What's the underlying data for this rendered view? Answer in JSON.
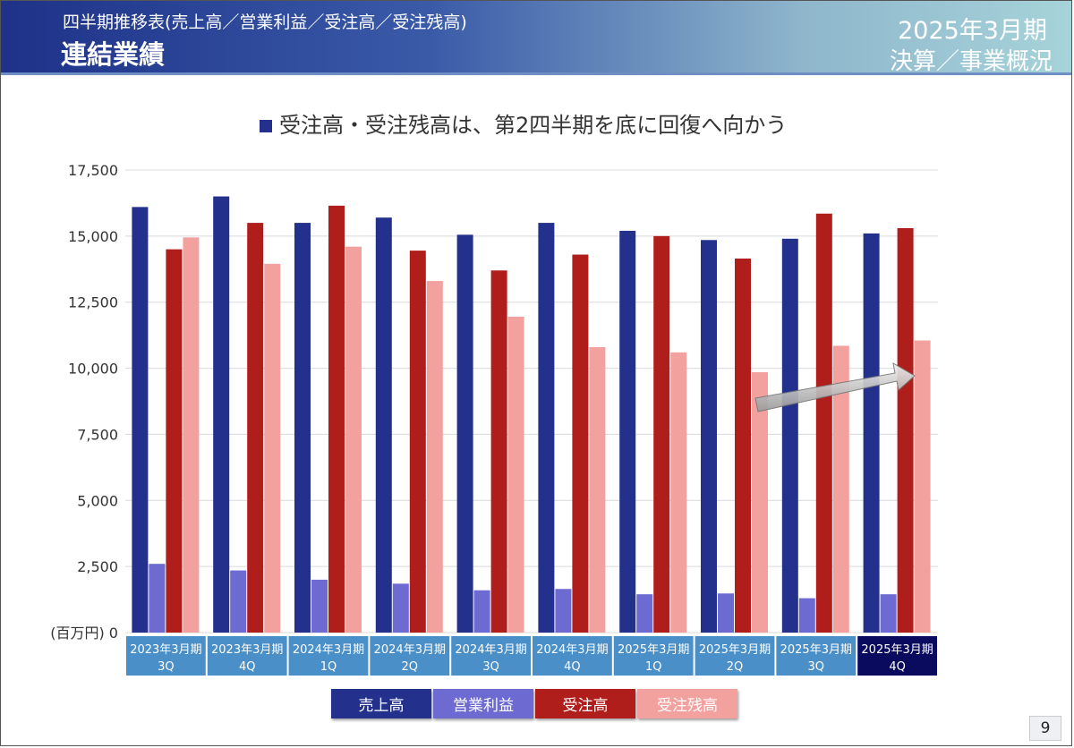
{
  "header": {
    "subtitle": "四半期推移表(売上高／営業利益／受注高／受注残高)",
    "title": "連結業績",
    "period": "2025年3月期",
    "section": "決算／事業概況"
  },
  "page_number": "9",
  "colors": {
    "sales": "#23318c",
    "operating_profit": "#6d6ad2",
    "orders": "#b01e1b",
    "backlog": "#f2a19f",
    "category_bg": "#4a8fc7",
    "category_highlight": "#0a0a5e"
  },
  "chart_data": {
    "type": "bar",
    "title": "受注高・受注残高は、第2四半期を底に回復へ向かう",
    "unit_label": "(百万円)",
    "ylim": [
      0,
      17500
    ],
    "yticks": [
      "0",
      "2,500",
      "5,000",
      "7,500",
      "10,000",
      "12,500",
      "15,000",
      "17,500"
    ],
    "categories": [
      [
        "2023年3月期",
        "3Q"
      ],
      [
        "2023年3月期",
        "4Q"
      ],
      [
        "2024年3月期",
        "1Q"
      ],
      [
        "2024年3月期",
        "2Q"
      ],
      [
        "2024年3月期",
        "3Q"
      ],
      [
        "2024年3月期",
        "4Q"
      ],
      [
        "2025年3月期",
        "1Q"
      ],
      [
        "2025年3月期",
        "2Q"
      ],
      [
        "2025年3月期",
        "3Q"
      ],
      [
        "2025年3月期",
        "4Q"
      ]
    ],
    "series": [
      {
        "name": "売上高",
        "values": [
          16100,
          16500,
          15500,
          15700,
          15050,
          15500,
          15200,
          14850,
          14900,
          15100
        ]
      },
      {
        "name": "営業利益",
        "values": [
          2600,
          2350,
          2000,
          1850,
          1600,
          1650,
          1450,
          1480,
          1300,
          1450
        ]
      },
      {
        "name": "受注高",
        "values": [
          14500,
          15500,
          16150,
          14450,
          13700,
          14300,
          15000,
          14150,
          15850,
          15300
        ]
      },
      {
        "name": "受注残高",
        "values": [
          14950,
          13950,
          14600,
          13300,
          11950,
          10800,
          10600,
          9850,
          10850,
          11050
        ]
      }
    ],
    "legend": [
      "売上高",
      "営業利益",
      "受注高",
      "受注残高"
    ],
    "legend_position": "bottom",
    "grid": true,
    "highlight_category": 9
  }
}
